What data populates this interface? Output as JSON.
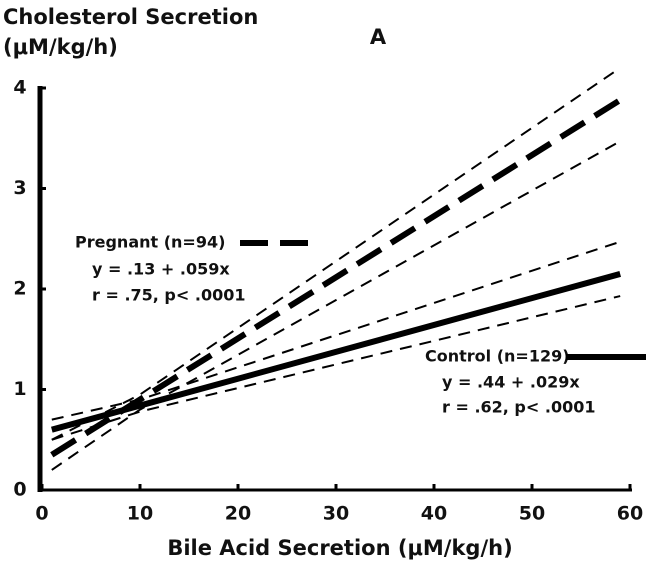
{
  "chart_data": {
    "type": "line",
    "title": "A",
    "ylabel": [
      "Cholesterol Secretion",
      "(μM/kg/h)"
    ],
    "xlabel": "Bile Acid Secretion (μM/kg/h)",
    "x": [
      1,
      10,
      59
    ],
    "xlim": [
      0,
      60
    ],
    "xticks": [
      0,
      10,
      20,
      30,
      40,
      50,
      60
    ],
    "ylim": [
      0,
      4
    ],
    "yticks": [
      0,
      1,
      2,
      3,
      4
    ],
    "series": [
      {
        "name": "Pregnant (n=94)",
        "color": "#000000",
        "style": "thick-dashed",
        "values": [
          0.35,
          0.9,
          3.88
        ],
        "equation": "y = .13 + .059x",
        "stats": "r = .75, p< .0001"
      },
      {
        "color": "#000000",
        "style": "thin-dashed",
        "values": [
          0.5,
          0.95,
          4.2
        ]
      },
      {
        "color": "#000000",
        "style": "thin-dashed",
        "values": [
          0.2,
          0.8,
          3.47
        ]
      },
      {
        "name": "Control (n=129)",
        "color": "#000000",
        "style": "thick-solid",
        "values": [
          0.6,
          0.84,
          2.15
        ],
        "equation": "y = .44 + .029x",
        "stats": "r = .62, p< .0001"
      },
      {
        "color": "#000000",
        "style": "thin-dashed",
        "values": [
          0.7,
          0.9,
          2.47
        ]
      },
      {
        "color": "#000000",
        "style": "thin-dashed",
        "values": [
          0.5,
          0.78,
          1.93
        ]
      }
    ]
  }
}
